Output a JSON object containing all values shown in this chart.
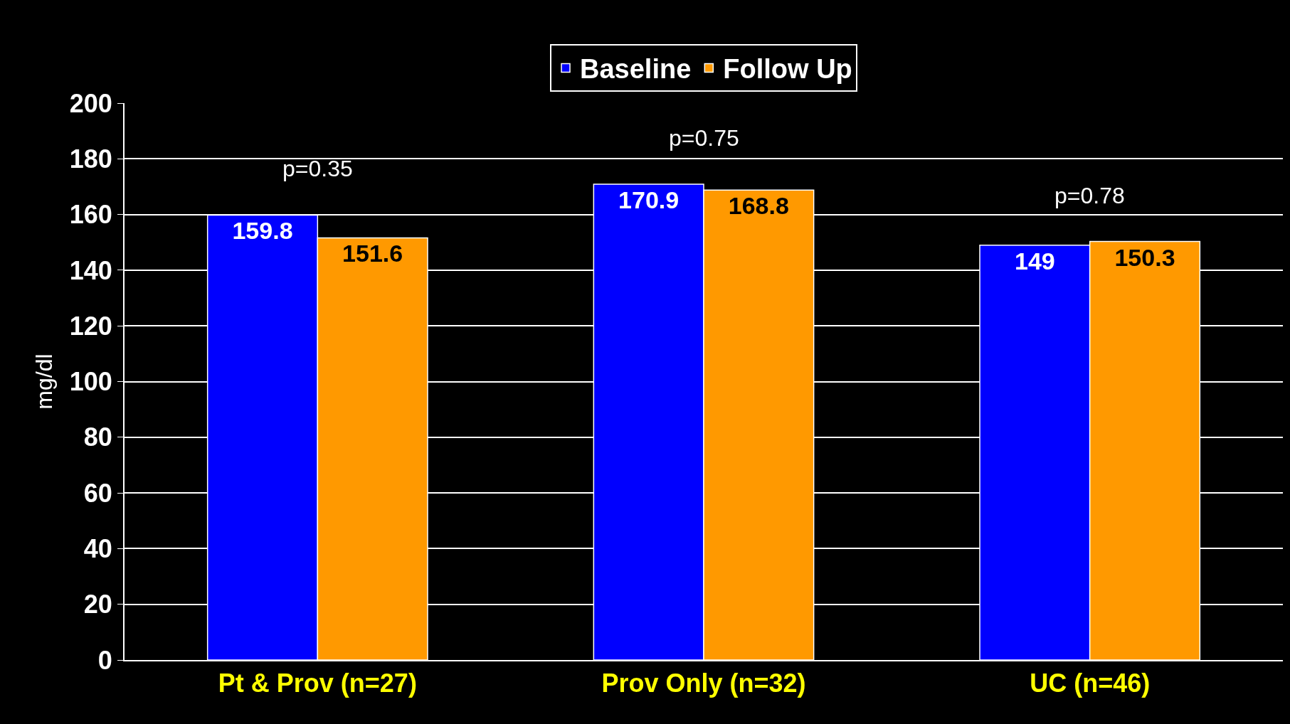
{
  "chart_data": {
    "type": "bar",
    "categories": [
      "Pt & Prov (n=27)",
      "Prov Only (n=32)",
      "UC (n=46)"
    ],
    "series": [
      {
        "name": "Baseline",
        "color": "#0000ff",
        "values": [
          159.8,
          170.9,
          149
        ]
      },
      {
        "name": "Follow Up",
        "color": "#ff9900",
        "values": [
          151.6,
          168.8,
          150.3
        ]
      }
    ],
    "ylabel": "mg/dl",
    "ylim": [
      0,
      200
    ],
    "yticks": [
      0,
      20,
      40,
      60,
      80,
      100,
      120,
      140,
      160,
      180,
      200
    ],
    "grid": "y",
    "legend": "top",
    "data_labels": true,
    "annotations": [
      "p=0.35",
      "p=0.75",
      "p=0.78"
    ]
  }
}
